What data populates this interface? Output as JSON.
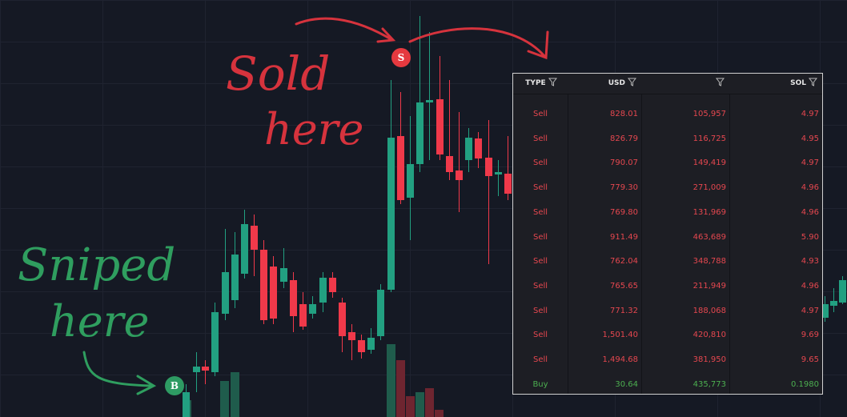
{
  "annotations": {
    "sold": [
      "Sold",
      "here"
    ],
    "sniped": [
      "Sniped",
      "here"
    ]
  },
  "markers": {
    "sell": "S",
    "buy": "B"
  },
  "table": {
    "headers": [
      "TYPE",
      "USD",
      null,
      "SOL"
    ],
    "rows": [
      [
        "Sell",
        "828.01",
        "105,957",
        "4.97"
      ],
      [
        "Sell",
        "826.79",
        "116,725",
        "4.95"
      ],
      [
        "Sell",
        "790.07",
        "149,419",
        "4.97"
      ],
      [
        "Sell",
        "779.30",
        "271,009",
        "4.96"
      ],
      [
        "Sell",
        "769.80",
        "131,969",
        "4.96"
      ],
      [
        "Sell",
        "911.49",
        "463,689",
        "5.90"
      ],
      [
        "Sell",
        "762.04",
        "348,788",
        "4.93"
      ],
      [
        "Sell",
        "765.65",
        "211,949",
        "4.96"
      ],
      [
        "Sell",
        "771.32",
        "188,068",
        "4.97"
      ],
      [
        "Sell",
        "1,501.40",
        "420,810",
        "9.69"
      ],
      [
        "Sell",
        "1,494.68",
        "381,950",
        "9.65"
      ],
      [
        "Buy",
        "30.64",
        "435,773",
        "0.1980"
      ]
    ]
  }
}
